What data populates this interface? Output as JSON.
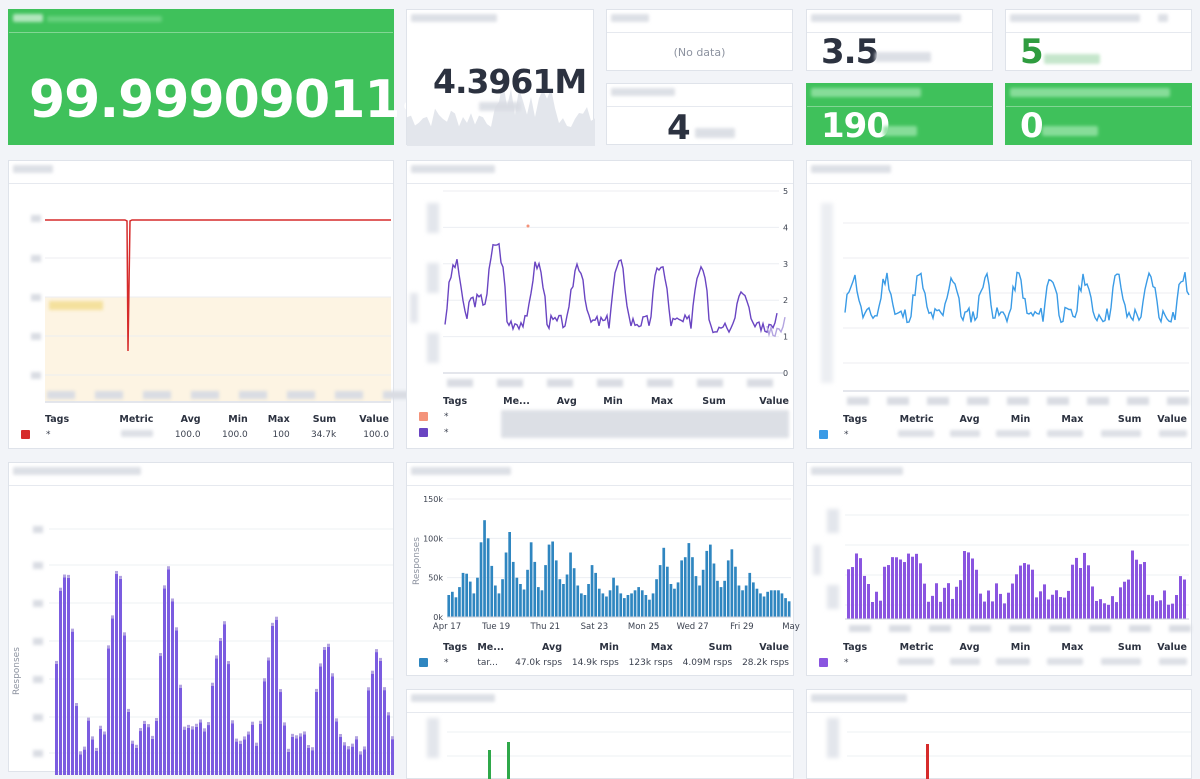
{
  "uptime": {
    "value": "99.99909011",
    "unit": "%"
  },
  "request_count": {
    "value": "4.3961M"
  },
  "no_data_panel": {
    "message": "(No data)"
  },
  "requests_per_second": {
    "value": "3.5"
  },
  "top_right_panel": {
    "value": "5"
  },
  "small_panel": {
    "value": "4"
  },
  "green_panel_a": {
    "value": "190"
  },
  "green_panel_b": {
    "value": "0"
  },
  "availability_panel": {
    "legend": {
      "headers": [
        "Tags",
        "Metric",
        "Avg",
        "Min",
        "Max",
        "Sum",
        "Value"
      ],
      "row": {
        "tag": "*",
        "avg": "100.0",
        "min": "100.0",
        "max": "100",
        "sum": "34.7k",
        "value": "100.0"
      },
      "color": "#d62b2b"
    }
  },
  "session_panel": {
    "legend": {
      "headers": [
        "Tags",
        "Me...",
        "Avg",
        "Min",
        "Max",
        "Sum",
        "Value"
      ],
      "rows": [
        {
          "tag": "*",
          "color": "#f4937a"
        },
        {
          "tag": "*",
          "color": "#6a45c2"
        }
      ]
    },
    "y_ticks": [
      "5",
      "4",
      "3",
      "2",
      "1",
      "0"
    ]
  },
  "response_time_panel": {
    "legend": {
      "headers": [
        "Tags",
        "Metric",
        "Avg",
        "Min",
        "Max",
        "Sum",
        "Value"
      ],
      "row": {
        "tag": "*"
      },
      "color": "#3a9be6"
    }
  },
  "left_bar_panel": {
    "ylabel": "Responses"
  },
  "center_bar_panel": {
    "legend": {
      "headers": [
        "Tags",
        "Me...",
        "Avg",
        "Min",
        "Max",
        "Sum",
        "Value"
      ],
      "row": {
        "tag": "*",
        "metric": "tar...",
        "avg": "47.0k",
        "avg_unit": "rsps",
        "min": "14.9k",
        "min_unit": "rsps",
        "max": "123k",
        "max_unit": "rsps",
        "sum": "4.09M",
        "sum_unit": "rsps",
        "value": "28.2k",
        "value_unit": "rsps"
      },
      "color": "#2f86c0"
    }
  },
  "right_bar_panel": {
    "legend": {
      "headers": [
        "Tags",
        "Metric",
        "Avg",
        "Min",
        "Max",
        "Sum",
        "Value"
      ],
      "row": {
        "tag": "*"
      },
      "color": "#8a55e0"
    }
  },
  "chart_data": [
    {
      "type": "bar",
      "title": "",
      "ylabel": "Responses",
      "x_ticks": [
        "Apr 17",
        "Tue 19",
        "Thu 21",
        "Sat 23",
        "Mon 25",
        "Wed 27",
        "Fri 29",
        "May"
      ],
      "y_ticks": [
        "0k",
        "50k",
        "100k",
        "150k"
      ],
      "ylim": [
        0,
        150000
      ],
      "color": "#2f86c0",
      "values": [
        28,
        32,
        25,
        38,
        56,
        55,
        45,
        30,
        50,
        95,
        123,
        100,
        65,
        40,
        30,
        48,
        82,
        108,
        70,
        50,
        42,
        35,
        60,
        95,
        70,
        38,
        34,
        66,
        92,
        96,
        72,
        48,
        42,
        54,
        82,
        62,
        40,
        30,
        28,
        42,
        66,
        56,
        36,
        30,
        26,
        34,
        50,
        40,
        30,
        24,
        28,
        30,
        34,
        38,
        34,
        28,
        22,
        30,
        48,
        66,
        88,
        64,
        42,
        36,
        44,
        72,
        76,
        94,
        76,
        52,
        40,
        60,
        84,
        92,
        68,
        46,
        38,
        46,
        72,
        86,
        64,
        40,
        34,
        40,
        56,
        44,
        36,
        30,
        26,
        32,
        34,
        34,
        34,
        30,
        24,
        20
      ]
    }
  ]
}
